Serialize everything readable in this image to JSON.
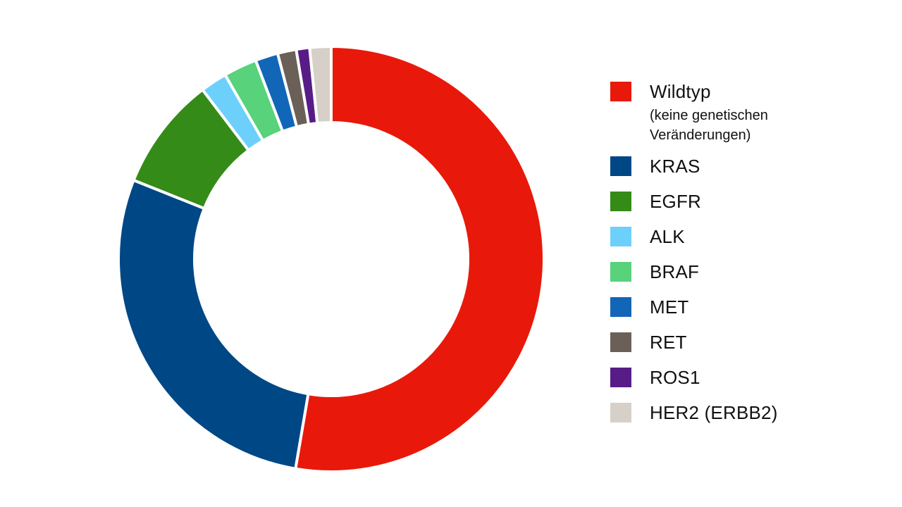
{
  "chart_data": {
    "type": "pie",
    "variant": "donut",
    "labels": [
      "Wildtyp",
      "KRAS",
      "EGFR",
      "ALK",
      "BRAF",
      "MET",
      "RET",
      "ROS1",
      "HER2 (ERBB2)"
    ],
    "values": [
      52.0,
      28.0,
      8.5,
      2.0,
      2.5,
      1.7,
      1.4,
      1.0,
      1.6
    ],
    "colors": [
      "#e8190a",
      "#004785",
      "#358b18",
      "#6dd0fb",
      "#58d27b",
      "#1266b8",
      "#6b6058",
      "#581c87",
      "#d7d0c8"
    ],
    "legend_position": "right",
    "legend": [
      {
        "label": "Wildtyp",
        "sublabel": "(keine genetischen Veränderungen)",
        "color": "#e8190a"
      },
      {
        "label": "KRAS",
        "color": "#004785"
      },
      {
        "label": "EGFR",
        "color": "#358b18"
      },
      {
        "label": "ALK",
        "color": "#6dd0fb"
      },
      {
        "label": "BRAF",
        "color": "#58d27b"
      },
      {
        "label": "MET",
        "color": "#1266b8"
      },
      {
        "label": "RET",
        "color": "#6b6058"
      },
      {
        "label": "ROS1",
        "color": "#581c87"
      },
      {
        "label": "HER2 (ERBB2)",
        "color": "#d7d0c8"
      }
    ]
  }
}
